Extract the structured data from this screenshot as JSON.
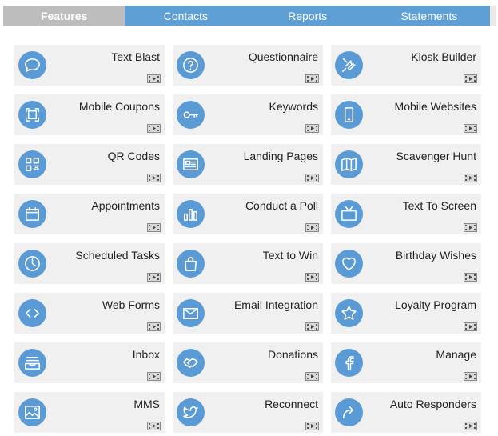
{
  "tabs": [
    {
      "label": "Features",
      "active": true
    },
    {
      "label": "Contacts",
      "active": false
    },
    {
      "label": "Reports",
      "active": false
    },
    {
      "label": "Statements",
      "active": false
    }
  ],
  "colors": {
    "tab_bar": "#5ea0d6",
    "active_tab": "#bdbdbd",
    "icon_circle": "#5b9bd5",
    "card_bg": "#f0f0f0"
  },
  "features": [
    {
      "label": "Text Blast",
      "icon": "speech-bubble-icon"
    },
    {
      "label": "Questionnaire",
      "icon": "question-icon"
    },
    {
      "label": "Kiosk Builder",
      "icon": "wrench-icon"
    },
    {
      "label": "Mobile Coupons",
      "icon": "coupon-icon"
    },
    {
      "label": "Keywords",
      "icon": "key-icon"
    },
    {
      "label": "Mobile Websites",
      "icon": "mobile-phone-icon"
    },
    {
      "label": "QR Codes",
      "icon": "qr-code-icon"
    },
    {
      "label": "Landing Pages",
      "icon": "landing-page-icon"
    },
    {
      "label": "Scavenger Hunt",
      "icon": "map-icon"
    },
    {
      "label": "Appointments",
      "icon": "calendar-icon"
    },
    {
      "label": "Conduct a Poll",
      "icon": "bar-chart-icon"
    },
    {
      "label": "Text To Screen",
      "icon": "tv-icon"
    },
    {
      "label": "Scheduled Tasks",
      "icon": "clock-icon"
    },
    {
      "label": "Text to Win",
      "icon": "shopping-bag-icon"
    },
    {
      "label": "Birthday Wishes",
      "icon": "heart-icon"
    },
    {
      "label": "Web Forms",
      "icon": "code-brackets-icon"
    },
    {
      "label": "Email Integration",
      "icon": "envelope-icon"
    },
    {
      "label": "Loyalty Program",
      "icon": "star-icon"
    },
    {
      "label": "Inbox",
      "icon": "inbox-tray-icon"
    },
    {
      "label": "Donations",
      "icon": "handshake-icon"
    },
    {
      "label": "Manage",
      "icon": "facebook-icon"
    },
    {
      "label": "MMS",
      "icon": "image-icon"
    },
    {
      "label": "Reconnect",
      "icon": "twitter-icon"
    },
    {
      "label": "Auto Responders",
      "icon": "reply-arrow-icon"
    }
  ]
}
